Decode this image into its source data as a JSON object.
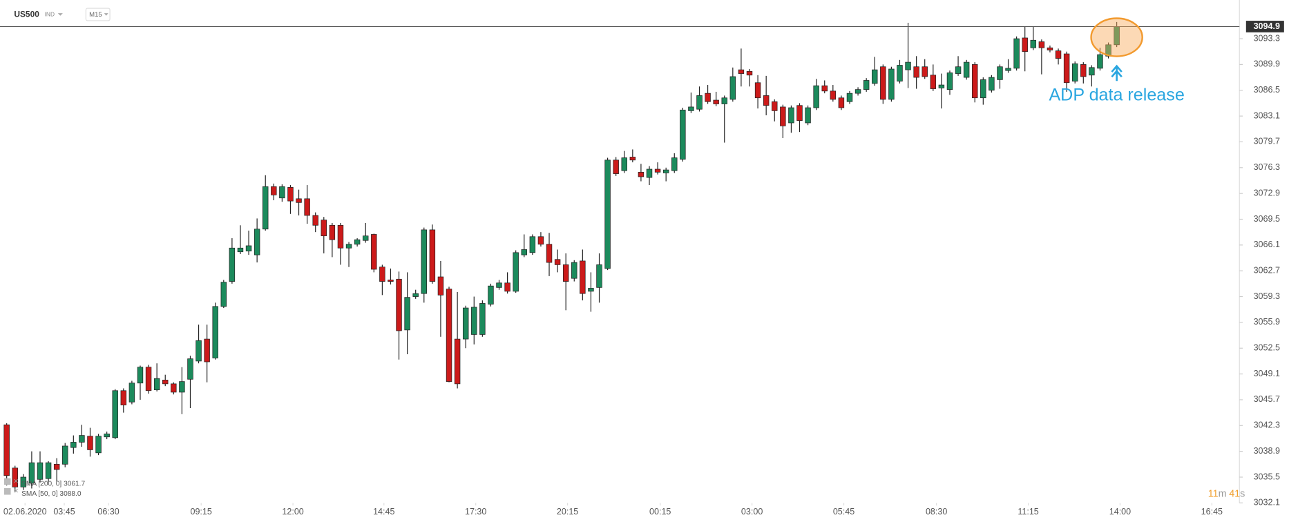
{
  "header": {
    "symbol": "US500",
    "market": "IND",
    "interval": "M15"
  },
  "indicators": [
    "SMA [200, 0] 3061.7",
    "SMA [50, 0] 3088.0"
  ],
  "countdown": [
    "11",
    "m",
    "41",
    "s"
  ],
  "chart_data": {
    "type": "candlestick",
    "up_color": "#1c8a5c",
    "down_color": "#cc1a1a",
    "last_price": 3094.9,
    "annotation": "ADP data release",
    "ylim": [
      3031.0,
      3098.4
    ],
    "yticks": [
      3032.1,
      3035.5,
      3038.9,
      3042.3,
      3045.7,
      3049.1,
      3052.5,
      3055.9,
      3059.3,
      3062.7,
      3066.1,
      3069.5,
      3072.9,
      3076.3,
      3079.7,
      3083.1,
      3086.5,
      3089.9,
      3093.3
    ],
    "xlim": [
      -0.8,
      147.7
    ],
    "xticks": [
      {
        "value": 2.2,
        "label": "02.06.2020"
      },
      {
        "value": 6.9,
        "label": "03:45"
      },
      {
        "value": 12.2,
        "label": "06:30"
      },
      {
        "value": 23.3,
        "label": "09:15"
      },
      {
        "value": 34.3,
        "label": "12:00"
      },
      {
        "value": 45.2,
        "label": "14:45"
      },
      {
        "value": 56.2,
        "label": "17:30"
      },
      {
        "value": 67.2,
        "label": "20:15"
      },
      {
        "value": 78.3,
        "label": "00:15"
      },
      {
        "value": 89.3,
        "label": "03:00"
      },
      {
        "value": 100.3,
        "label": "05:45"
      },
      {
        "value": 111.4,
        "label": "08:30"
      },
      {
        "value": 122.4,
        "label": "11:15"
      },
      {
        "value": 133.4,
        "label": "14:00"
      },
      {
        "value": 144.4,
        "label": "16:45"
      }
    ],
    "open": [
      3042.4,
      3036.7,
      3034.2,
      3034.7,
      3035.2,
      3035.3,
      3037.2,
      3037.2,
      3039.4,
      3040.1,
      3040.9,
      3038.7,
      3040.8,
      3040.7,
      3046.9,
      3045.4,
      3047.9,
      3050.0,
      3047.0,
      3048.3,
      3047.8,
      3046.7,
      3048.4,
      3050.8,
      3053.7,
      3051.2,
      3058.0,
      3061.3,
      3065.2,
      3065.3,
      3064.8,
      3068.2,
      3073.8,
      3072.3,
      3073.7,
      3072.2,
      3072.2,
      3070.0,
      3069.4,
      3068.7,
      3068.7,
      3065.7,
      3066.2,
      3066.7,
      3067.5,
      3063.2,
      3061.5,
      3061.6,
      3054.9,
      3059.3,
      3059.7,
      3068.1,
      3061.9,
      3060.3,
      3053.7,
      3053.7,
      3054.3,
      3054.3,
      3058.3,
      3060.5,
      3061.1,
      3060.0,
      3064.8,
      3065.1,
      3067.2,
      3066.2,
      3064.2,
      3063.5,
      3061.7,
      3064.0,
      3060.0,
      3060.5,
      3063.0,
      3077.3,
      3075.9,
      3077.7,
      3075.7,
      3075.0,
      3076.1,
      3075.6,
      3075.9,
      3077.4,
      3083.8,
      3084.0,
      3086.1,
      3085.2,
      3084.7,
      3085.3,
      3089.2,
      3089.0,
      3087.5,
      3085.8,
      3085.0,
      3084.3,
      3082.2,
      3084.5,
      3082.2,
      3084.2,
      3087.1,
      3086.4,
      3085.5,
      3085.0,
      3086.1,
      3086.6,
      3087.4,
      3089.6,
      3085.3,
      3087.7,
      3089.2,
      3089.6,
      3089.6,
      3088.5,
      3086.8,
      3086.6,
      3088.7,
      3088.2,
      3089.9,
      3085.5,
      3086.5,
      3087.9,
      3089.1,
      3089.4,
      3093.4,
      3092.1,
      3092.9,
      3092.1,
      3091.7,
      3091.3,
      3087.7,
      3089.9,
      3088.5,
      3089.4,
      3091.0,
      3092.5
    ],
    "high": [
      3042.6,
      3037.0,
      3035.9,
      3038.9,
      3038.9,
      3037.6,
      3038.0,
      3040.0,
      3041.0,
      3042.4,
      3042.0,
      3041.2,
      3041.5,
      3047.1,
      3047.2,
      3048.2,
      3050.2,
      3050.3,
      3050.5,
      3049.0,
      3048.0,
      3050.0,
      3051.5,
      3055.6,
      3055.6,
      3058.5,
      3061.5,
      3067.0,
      3068.7,
      3068.0,
      3069.6,
      3075.3,
      3074.2,
      3074.1,
      3074.0,
      3073.4,
      3074.0,
      3070.4,
      3069.8,
      3069.0,
      3069.0,
      3066.5,
      3067.0,
      3069.0,
      3067.6,
      3063.5,
      3063.0,
      3062.6,
      3062.5,
      3060.2,
      3068.4,
      3068.8,
      3064.0,
      3060.6,
      3059.9,
      3058.1,
      3059.3,
      3058.8,
      3061.0,
      3061.5,
      3062.5,
      3065.4,
      3067.5,
      3067.5,
      3067.8,
      3067.7,
      3065.5,
      3065.0,
      3064.1,
      3065.5,
      3062.5,
      3065.0,
      3077.6,
      3077.7,
      3078.5,
      3078.7,
      3076.8,
      3076.5,
      3077.0,
      3076.3,
      3078.2,
      3084.2,
      3086.2,
      3087.0,
      3087.2,
      3086.3,
      3085.8,
      3089.5,
      3092.0,
      3089.3,
      3088.5,
      3088.4,
      3085.3,
      3084.6,
      3084.5,
      3084.8,
      3084.5,
      3088.0,
      3087.8,
      3087.2,
      3085.8,
      3086.4,
      3086.9,
      3088.1,
      3090.9,
      3089.9,
      3089.6,
      3090.5,
      3095.4,
      3091.0,
      3090.6,
      3089.9,
      3088.7,
      3089.1,
      3091.0,
      3090.5,
      3090.2,
      3088.2,
      3088.5,
      3089.9,
      3090.6,
      3093.6,
      3094.9,
      3094.9,
      3093.2,
      3092.4,
      3092.0,
      3091.6,
      3090.3,
      3090.2,
      3089.8,
      3092.1,
      3092.8,
      3095.5
    ],
    "low": [
      3034.4,
      3033.5,
      3033.8,
      3034.0,
      3034.8,
      3034.9,
      3034.9,
      3036.8,
      3038.6,
      3039.5,
      3038.2,
      3038.4,
      3040.5,
      3040.5,
      3044.0,
      3045.1,
      3045.7,
      3046.5,
      3046.8,
      3047.5,
      3046.4,
      3043.8,
      3044.6,
      3050.5,
      3048.0,
      3051.0,
      3057.8,
      3061.0,
      3064.9,
      3064.8,
      3063.8,
      3068.0,
      3072.0,
      3071.8,
      3070.2,
      3070.0,
      3068.9,
      3067.8,
      3065.0,
      3064.5,
      3063.5,
      3063.2,
      3065.9,
      3066.4,
      3062.5,
      3059.5,
      3060.9,
      3051.0,
      3051.7,
      3059.0,
      3058.5,
      3061.0,
      3054.0,
      3048.0,
      3047.2,
      3052.5,
      3053.0,
      3054.0,
      3058.0,
      3060.2,
      3059.7,
      3059.8,
      3064.5,
      3064.8,
      3065.9,
      3062.0,
      3062.5,
      3057.5,
      3061.3,
      3058.8,
      3057.3,
      3058.5,
      3062.8,
      3075.2,
      3075.6,
      3077.0,
      3074.5,
      3074.0,
      3075.4,
      3074.5,
      3075.6,
      3077.1,
      3083.5,
      3083.7,
      3084.7,
      3084.4,
      3079.6,
      3085.0,
      3087.0,
      3087.0,
      3084.1,
      3083.2,
      3082.4,
      3080.2,
      3080.9,
      3081.0,
      3081.9,
      3083.9,
      3086.1,
      3085.0,
      3083.9,
      3084.7,
      3085.8,
      3086.3,
      3087.1,
      3084.7,
      3085.0,
      3087.4,
      3086.8,
      3086.7,
      3088.0,
      3086.4,
      3084.1,
      3085.9,
      3088.4,
      3087.9,
      3084.9,
      3084.6,
      3086.2,
      3086.7,
      3088.8,
      3089.1,
      3089.0,
      3091.8,
      3088.6,
      3091.5,
      3089.9,
      3086.3,
      3087.4,
      3087.4,
      3087.0,
      3089.1,
      3090.7,
      3092.2
    ],
    "close": [
      3035.7,
      3034.2,
      3035.5,
      3037.4,
      3037.4,
      3037.4,
      3036.5,
      3039.6,
      3040.1,
      3041.0,
      3039.1,
      3040.9,
      3041.2,
      3046.9,
      3045.0,
      3047.9,
      3050.0,
      3046.9,
      3048.5,
      3047.8,
      3046.7,
      3048.1,
      3051.1,
      3053.5,
      3050.7,
      3058.0,
      3061.2,
      3065.7,
      3065.7,
      3066.0,
      3068.2,
      3073.8,
      3072.7,
      3073.8,
      3071.9,
      3071.7,
      3070.0,
      3068.7,
      3067.3,
      3066.8,
      3065.7,
      3066.2,
      3066.8,
      3067.3,
      3062.9,
      3061.3,
      3061.3,
      3054.8,
      3059.2,
      3059.7,
      3068.1,
      3061.3,
      3059.5,
      3048.1,
      3047.8,
      3057.8,
      3057.9,
      3058.4,
      3060.7,
      3061.1,
      3060.0,
      3065.1,
      3065.5,
      3067.2,
      3066.2,
      3063.8,
      3063.5,
      3061.3,
      3063.8,
      3059.7,
      3060.4,
      3063.5,
      3077.3,
      3075.5,
      3077.6,
      3077.3,
      3075.1,
      3076.1,
      3075.7,
      3076.0,
      3077.6,
      3083.9,
      3084.3,
      3085.8,
      3085.0,
      3084.7,
      3085.5,
      3088.3,
      3088.7,
      3088.5,
      3085.5,
      3084.5,
      3083.8,
      3081.8,
      3084.2,
      3082.5,
      3084.2,
      3087.1,
      3086.4,
      3085.3,
      3084.2,
      3086.1,
      3086.6,
      3087.8,
      3089.2,
      3085.3,
      3089.3,
      3089.8,
      3090.2,
      3088.2,
      3088.3,
      3086.7,
      3087.2,
      3088.8,
      3089.6,
      3090.2,
      3085.5,
      3087.9,
      3088.2,
      3089.6,
      3089.4,
      3093.3,
      3091.6,
      3093.1,
      3092.1,
      3091.8,
      3090.7,
      3087.5,
      3090.0,
      3088.3,
      3089.5,
      3091.2,
      3092.5,
      3094.9
    ]
  }
}
